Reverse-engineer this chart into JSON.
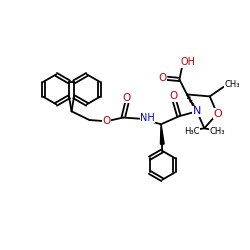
{
  "background_color": "#ffffff",
  "bond_color": "#000000",
  "bond_lw": 1.3,
  "atom_colors": {
    "O": "#cc0000",
    "N": "#0000cc",
    "C": "#000000",
    "H": "#000000"
  },
  "font_size": 6.5,
  "fig_size": [
    2.5,
    2.5
  ],
  "dpi": 100,
  "xlim": [
    0,
    10
  ],
  "ylim": [
    0,
    10
  ]
}
